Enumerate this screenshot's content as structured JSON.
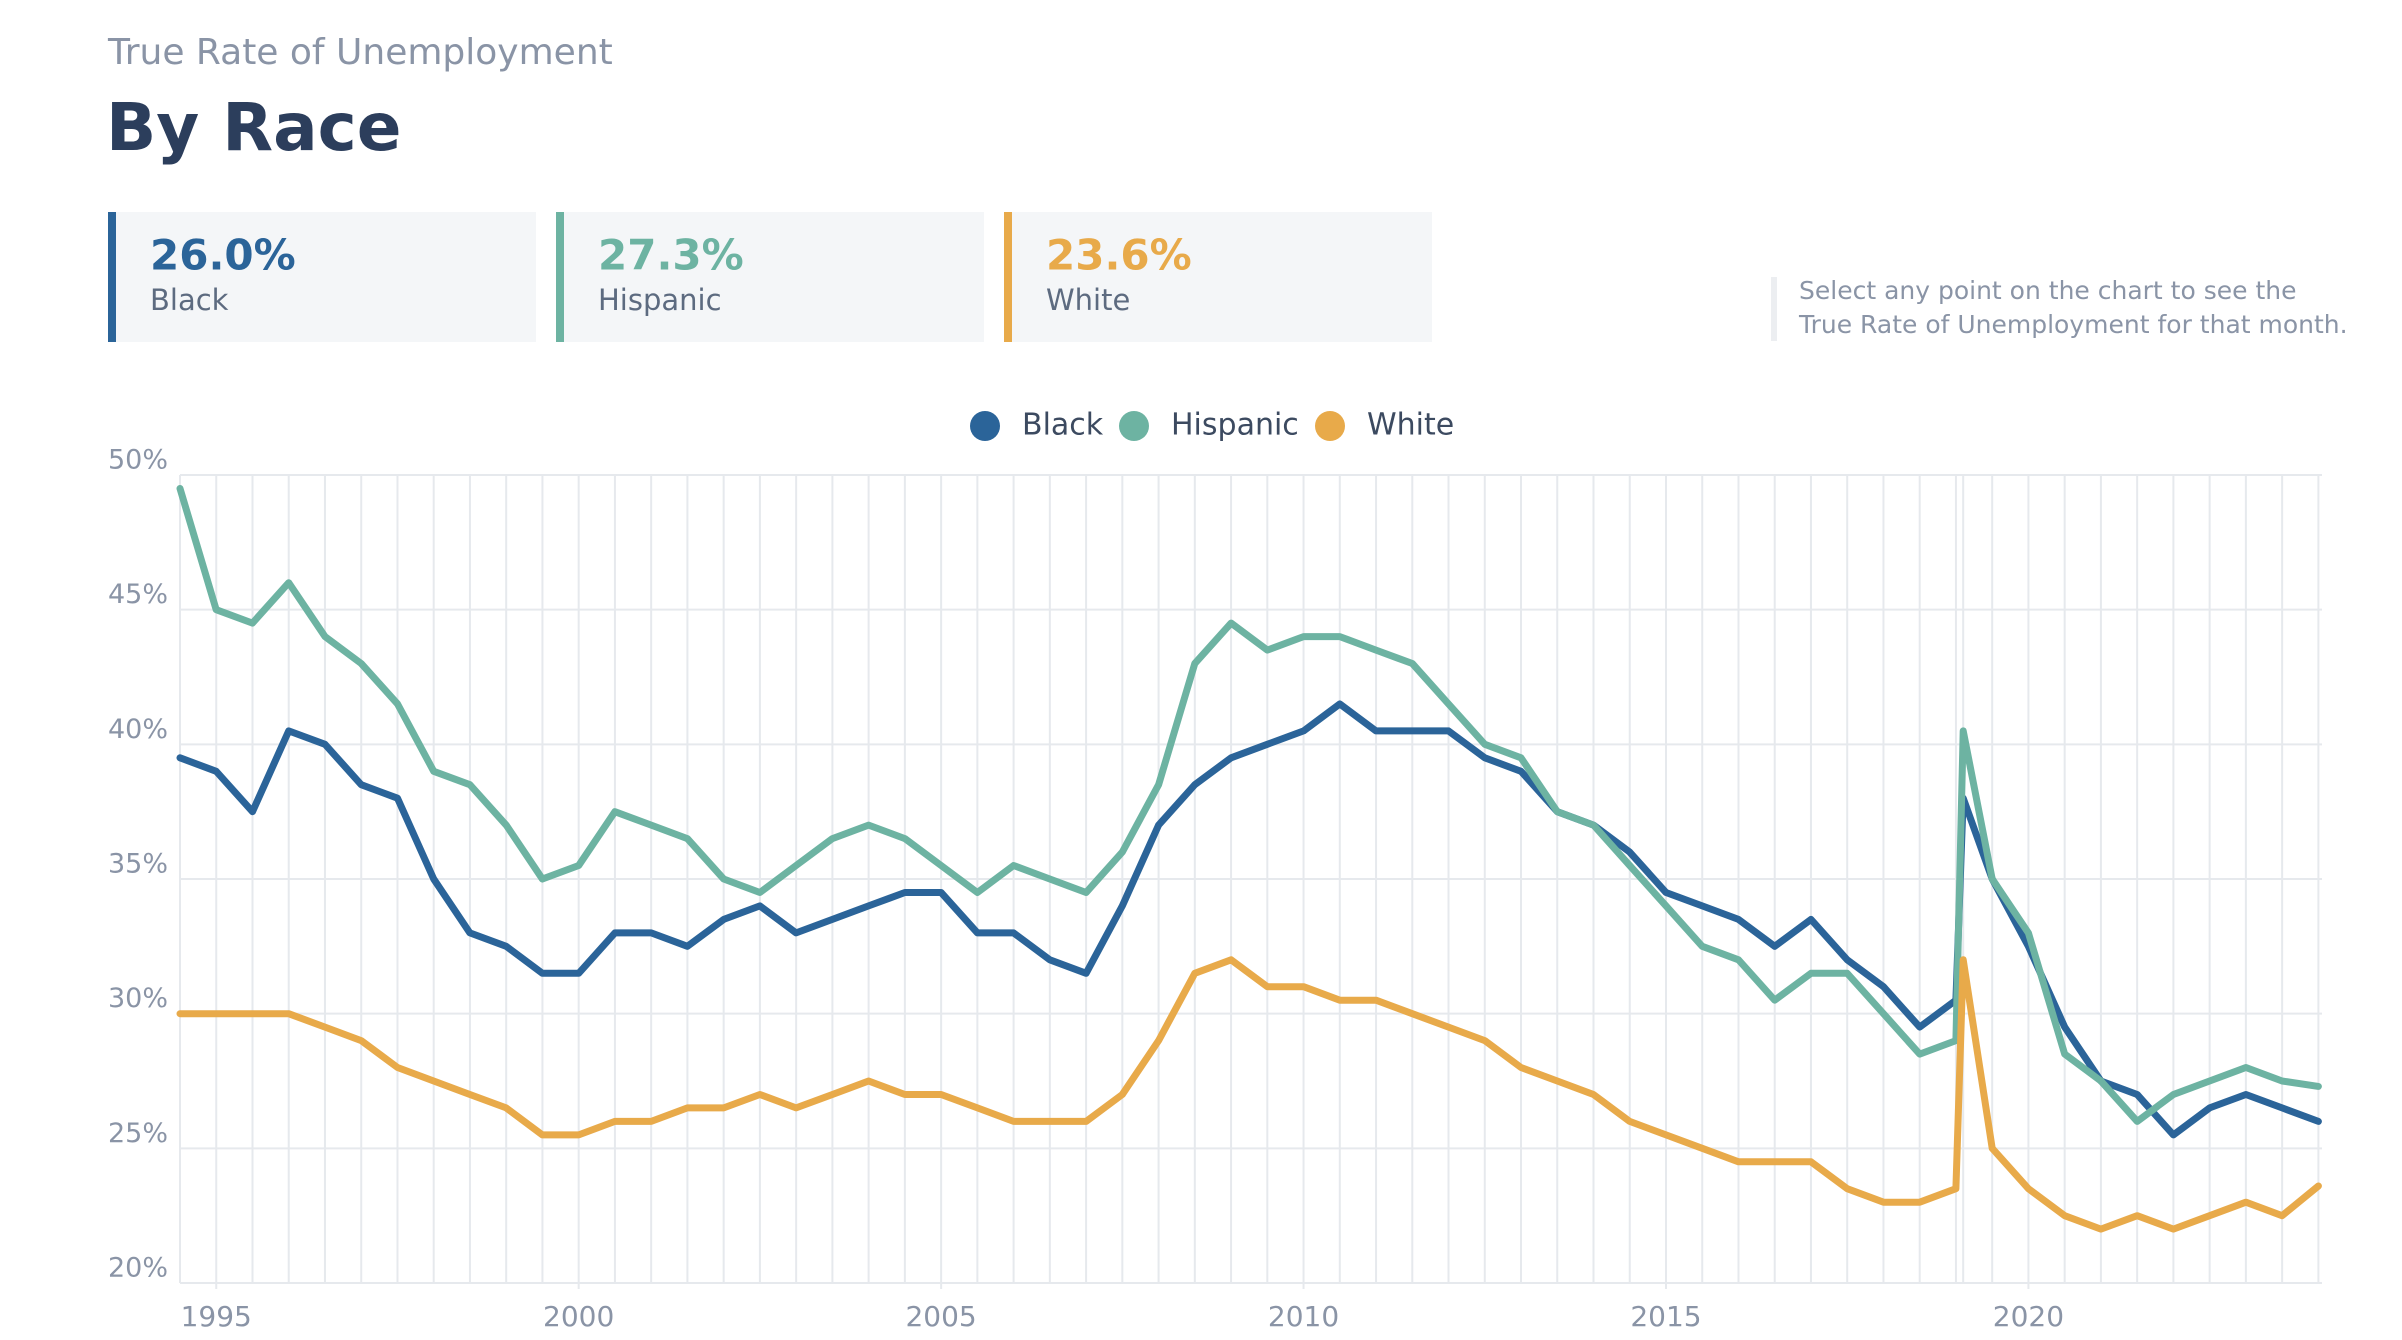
{
  "header": {
    "kicker": "True Rate of Unemployment",
    "title": "By Race"
  },
  "cards": [
    {
      "value": "26.0%",
      "label": "Black",
      "color": "#2b6499"
    },
    {
      "value": "27.3%",
      "label": "Hispanic",
      "color": "#6db3a2"
    },
    {
      "value": "23.6%",
      "label": "White",
      "color": "#e8aa4a"
    }
  ],
  "note": [
    "Select any point on the chart to see the",
    "True Rate of Unemployment for that month."
  ],
  "chart_data": {
    "type": "line",
    "x": [
      1994.5,
      1995,
      1995.5,
      1996,
      1996.5,
      1997,
      1997.5,
      1998,
      1998.5,
      1999,
      1999.5,
      2000,
      2000.5,
      2001,
      2001.5,
      2002,
      2002.5,
      2003,
      2003.5,
      2004,
      2004.5,
      2005,
      2005.5,
      2006,
      2006.5,
      2007,
      2007.5,
      2008,
      2008.5,
      2009,
      2009.5,
      2010,
      2010.5,
      2011,
      2011.5,
      2012,
      2012.5,
      2013,
      2013.5,
      2014,
      2014.5,
      2015,
      2015.5,
      2016,
      2016.5,
      2017,
      2017.5,
      2018,
      2018.5,
      2019,
      2019.1,
      2019.5,
      2020,
      2020.5,
      2021,
      2021.5,
      2022,
      2022.5,
      2023,
      2023.5,
      2024
    ],
    "series": [
      {
        "name": "Black",
        "color": "#2b6499",
        "values": [
          39.5,
          39,
          37.5,
          40.5,
          40,
          38.5,
          38,
          35,
          33,
          32.5,
          31.5,
          31.5,
          33,
          33,
          32.5,
          33.5,
          34,
          33,
          33.5,
          34,
          34.5,
          34.5,
          33,
          33,
          32,
          31.5,
          34,
          37,
          38.5,
          39.5,
          40,
          40.5,
          41.5,
          40.5,
          40.5,
          40.5,
          39.5,
          39,
          37.5,
          37,
          36,
          34.5,
          34,
          33.5,
          32.5,
          33.5,
          32,
          31,
          29.5,
          30.5,
          38,
          35,
          32.5,
          29.5,
          27.5,
          27,
          25.5,
          26.5,
          27,
          26.5,
          26
        ]
      },
      {
        "name": "Hispanic",
        "color": "#6db3a2",
        "values": [
          49.5,
          45,
          44.5,
          46,
          44,
          43,
          41.5,
          39,
          38.5,
          37,
          35,
          35.5,
          37.5,
          37,
          36.5,
          35,
          34.5,
          35.5,
          36.5,
          37,
          36.5,
          35.5,
          34.5,
          35.5,
          35,
          34.5,
          36,
          38.5,
          43,
          44.5,
          43.5,
          44,
          44,
          43.5,
          43,
          41.5,
          40,
          39.5,
          37.5,
          37,
          35.5,
          34,
          32.5,
          32,
          30.5,
          31.5,
          31.5,
          30,
          28.5,
          29,
          40.5,
          35,
          33,
          28.5,
          27.5,
          26,
          27,
          27.5,
          28,
          27.5,
          27.3
        ]
      },
      {
        "name": "White",
        "color": "#e8aa4a",
        "values": [
          30,
          30,
          30,
          30,
          29.5,
          29,
          28,
          27.5,
          27,
          26.5,
          25.5,
          25.5,
          26,
          26,
          26.5,
          26.5,
          27,
          26.5,
          27,
          27.5,
          27,
          27,
          26.5,
          26,
          26,
          26,
          27,
          29,
          31.5,
          32,
          31,
          31,
          30.5,
          30.5,
          30,
          29.5,
          29,
          28,
          27.5,
          27,
          26,
          25.5,
          25,
          24.5,
          24.5,
          24.5,
          23.5,
          23,
          23,
          23.5,
          32,
          25,
          23.5,
          22.5,
          22,
          22.5,
          22,
          22.5,
          23,
          22.5,
          23.6
        ]
      }
    ],
    "xlim": [
      1994.5,
      2024.05
    ],
    "xticks": [
      1995,
      2000,
      2005,
      2010,
      2015,
      2020
    ],
    "ylim": [
      20,
      50
    ],
    "yticks": [
      {
        "value": 20,
        "label": "20%"
      },
      {
        "value": 25,
        "label": "25%"
      },
      {
        "value": 30,
        "label": "30%"
      },
      {
        "value": 35,
        "label": "35%"
      },
      {
        "value": 40,
        "label": "40%"
      },
      {
        "value": 45,
        "label": "45%"
      },
      {
        "value": 50,
        "label": "50%"
      }
    ],
    "grid": true,
    "legend": "top"
  }
}
